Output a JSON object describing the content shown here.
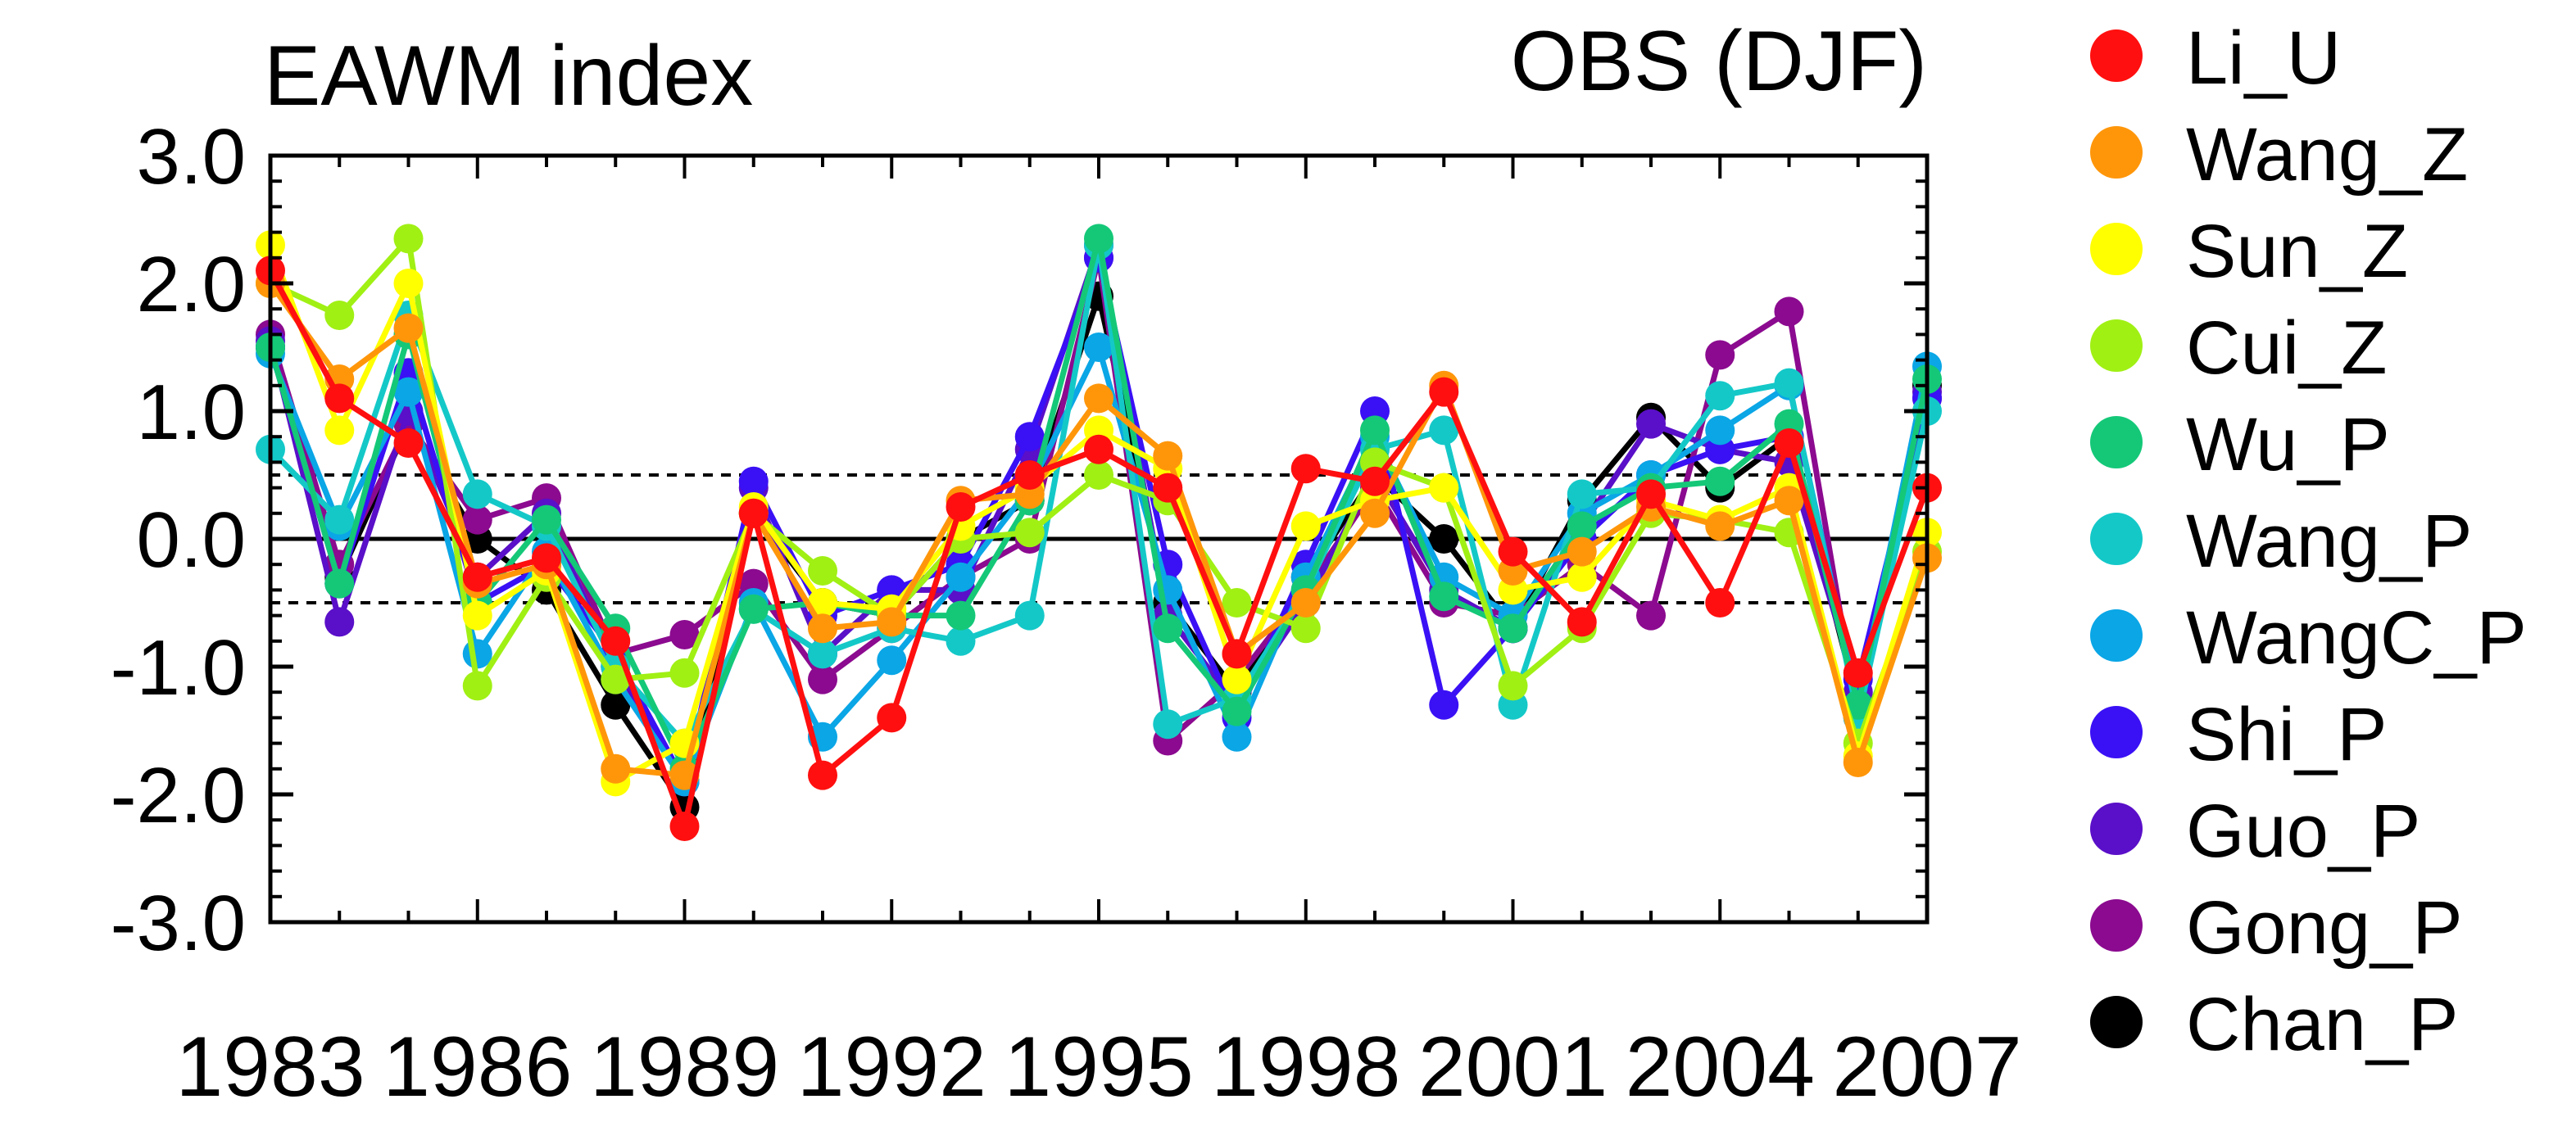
{
  "chart_data": {
    "type": "line",
    "title": "EAWM index",
    "subtitle": "OBS (DJF)",
    "xlabel": "",
    "ylabel": "",
    "xlim": [
      1983,
      2007
    ],
    "ylim": [
      -3.0,
      3.0
    ],
    "x_ticks": [
      1983,
      1986,
      1989,
      1992,
      1995,
      1998,
      2001,
      2004,
      2007
    ],
    "y_ticks": [
      3.0,
      2.0,
      1.0,
      0.0,
      -1.0,
      -2.0,
      -3.0
    ],
    "y_tick_labels": [
      "3.0",
      "2.0",
      "1.0",
      "0.0",
      "-1.0",
      "-2.0",
      "-3.0"
    ],
    "x_tick_labels": [
      "1983",
      "1986",
      "1989",
      "1992",
      "1995",
      "1998",
      "2001",
      "2004",
      "2007"
    ],
    "reference_lines": [
      {
        "value": 0.0,
        "style": "solid"
      },
      {
        "value": 0.5,
        "style": "dashed"
      },
      {
        "value": -0.5,
        "style": "dashed"
      }
    ],
    "grid": false,
    "legend_position": "right",
    "x": [
      1983,
      1984,
      1985,
      1986,
      1987,
      1988,
      1989,
      1990,
      1991,
      1992,
      1993,
      1994,
      1995,
      1996,
      1997,
      1998,
      1999,
      2000,
      2001,
      2002,
      2003,
      2004,
      2005,
      2006,
      2007
    ],
    "series": [
      {
        "name": "Chan_P",
        "color": "#000000",
        "values": [
          1.5,
          -0.3,
          0.9,
          0.0,
          -0.4,
          -1.3,
          -2.1,
          0.2,
          -0.5,
          -0.6,
          0.0,
          0.3,
          1.9,
          -0.5,
          -1.2,
          -0.3,
          0.5,
          0.0,
          -0.7,
          0.3,
          0.95,
          0.4,
          0.8,
          -1.3,
          1.2
        ]
      },
      {
        "name": "Gong_P",
        "color": "#8b0a8f",
        "values": [
          1.6,
          -0.2,
          0.9,
          0.15,
          0.32,
          -0.9,
          -0.75,
          -0.35,
          -1.1,
          -0.7,
          -0.3,
          0.0,
          2.2,
          -1.58,
          -1.1,
          -0.4,
          0.4,
          -0.5,
          -0.6,
          -0.2,
          -0.6,
          1.44,
          1.78,
          -1.4,
          1.1
        ]
      },
      {
        "name": "Guo_P",
        "color": "#5a0fc8",
        "values": [
          1.55,
          -0.65,
          1.0,
          -0.3,
          0.2,
          -1.0,
          -1.9,
          0.4,
          -0.9,
          -0.4,
          -0.4,
          0.7,
          2.3,
          -0.6,
          -1.3,
          -0.5,
          0.5,
          -0.4,
          -0.7,
          0.1,
          0.9,
          0.7,
          0.6,
          -1.2,
          1.15
        ]
      },
      {
        "name": "Shi_P",
        "color": "#3a10f5",
        "values": [
          1.5,
          -0.35,
          1.3,
          -0.5,
          -0.2,
          -0.9,
          -1.9,
          0.45,
          -0.6,
          -0.4,
          -0.2,
          0.8,
          2.2,
          -0.2,
          -1.4,
          -0.2,
          1.0,
          -1.3,
          -0.7,
          0.0,
          0.5,
          0.7,
          0.8,
          -1.1,
          1.1
        ]
      },
      {
        "name": "WangC_P",
        "color": "#0aa6e6",
        "values": [
          1.45,
          0.1,
          1.15,
          -0.9,
          -0.1,
          -1.1,
          -1.9,
          -0.5,
          -1.55,
          -0.95,
          -0.3,
          0.4,
          1.5,
          -0.4,
          -1.55,
          -0.3,
          0.8,
          -0.3,
          -0.6,
          0.2,
          0.5,
          0.85,
          1.2,
          -1.3,
          1.35
        ]
      },
      {
        "name": "Wang_P",
        "color": "#14c8c8",
        "values": [
          0.7,
          0.15,
          1.75,
          0.35,
          0.1,
          -1.0,
          -1.6,
          -0.55,
          -0.9,
          -0.7,
          -0.8,
          -0.6,
          2.3,
          -1.45,
          -1.25,
          -0.4,
          0.7,
          0.85,
          -1.3,
          0.35,
          0.4,
          1.12,
          1.22,
          -1.4,
          1.0
        ]
      },
      {
        "name": "Wu_P",
        "color": "#14c878",
        "values": [
          1.5,
          -0.35,
          1.6,
          -0.5,
          0.15,
          -0.7,
          -1.8,
          -0.55,
          -0.5,
          -0.6,
          -0.6,
          0.3,
          2.35,
          -0.7,
          -1.35,
          -0.4,
          0.85,
          -0.45,
          -0.7,
          0.1,
          0.4,
          0.45,
          0.9,
          -1.3,
          1.25
        ]
      },
      {
        "name": "Cui_Z",
        "color": "#a0f014",
        "values": [
          2.0,
          1.75,
          2.35,
          -1.15,
          -0.3,
          -1.1,
          -1.05,
          0.2,
          -0.25,
          -0.6,
          0.0,
          0.05,
          0.5,
          0.3,
          -0.5,
          -0.7,
          0.6,
          0.4,
          -1.15,
          -0.7,
          0.2,
          0.15,
          0.05,
          -1.6,
          -0.1
        ]
      },
      {
        "name": "Sun_Z",
        "color": "#ffff00",
        "values": [
          2.3,
          0.85,
          2.0,
          -0.6,
          -0.25,
          -1.9,
          -1.6,
          0.25,
          -0.5,
          -0.55,
          0.1,
          0.4,
          0.85,
          0.55,
          -1.1,
          0.1,
          0.3,
          0.4,
          -0.4,
          -0.3,
          0.3,
          0.15,
          0.4,
          -1.7,
          0.05
        ]
      },
      {
        "name": "Wang_Z",
        "color": "#ff960a",
        "values": [
          2.0,
          1.25,
          1.65,
          -0.35,
          -0.2,
          -1.8,
          -1.85,
          0.2,
          -0.7,
          -0.65,
          0.3,
          0.35,
          1.1,
          0.65,
          -0.9,
          -0.5,
          0.2,
          1.2,
          -0.25,
          -0.1,
          0.25,
          0.1,
          0.3,
          -1.75,
          -0.15
        ]
      },
      {
        "name": "Li_U",
        "color": "#ff0f0f",
        "values": [
          2.1,
          1.1,
          0.75,
          -0.3,
          -0.15,
          -0.8,
          -2.25,
          0.2,
          -1.85,
          -1.4,
          0.25,
          0.5,
          0.7,
          0.4,
          -0.9,
          0.55,
          0.45,
          1.15,
          -0.1,
          -0.65,
          0.35,
          -0.5,
          0.75,
          -1.05,
          0.4
        ]
      }
    ],
    "legend_order": [
      "Li_U",
      "Wang_Z",
      "Sun_Z",
      "Cui_Z",
      "Wu_P",
      "Wang_P",
      "WangC_P",
      "Shi_P",
      "Guo_P",
      "Gong_P",
      "Chan_P"
    ]
  }
}
